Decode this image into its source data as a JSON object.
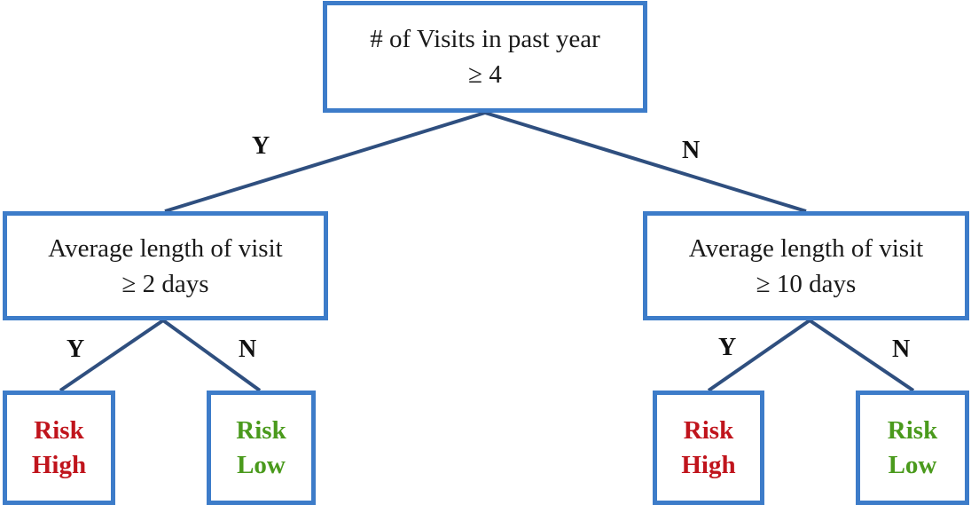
{
  "root": {
    "line1": "# of Visits in past year",
    "line2": "≥ 4",
    "yes_label": "Y",
    "no_label": "N"
  },
  "left": {
    "line1": "Average length of visit",
    "line2": "≥ 2 days",
    "yes_label": "Y",
    "no_label": "N",
    "yes_leaf": {
      "line1": "Risk",
      "line2": "High"
    },
    "no_leaf": {
      "line1": "Risk",
      "line2": "Low"
    }
  },
  "right": {
    "line1": "Average length of visit",
    "line2": "≥ 10 days",
    "yes_label": "Y",
    "no_label": "N",
    "yes_leaf": {
      "line1": "Risk",
      "line2": "High"
    },
    "no_leaf": {
      "line1": "Risk",
      "line2": "Low"
    }
  },
  "colors": {
    "box_border": "#3d7cc9",
    "connector": "#2f4f7f",
    "risk_high": "#c0141c",
    "risk_low": "#4a9a1c"
  }
}
